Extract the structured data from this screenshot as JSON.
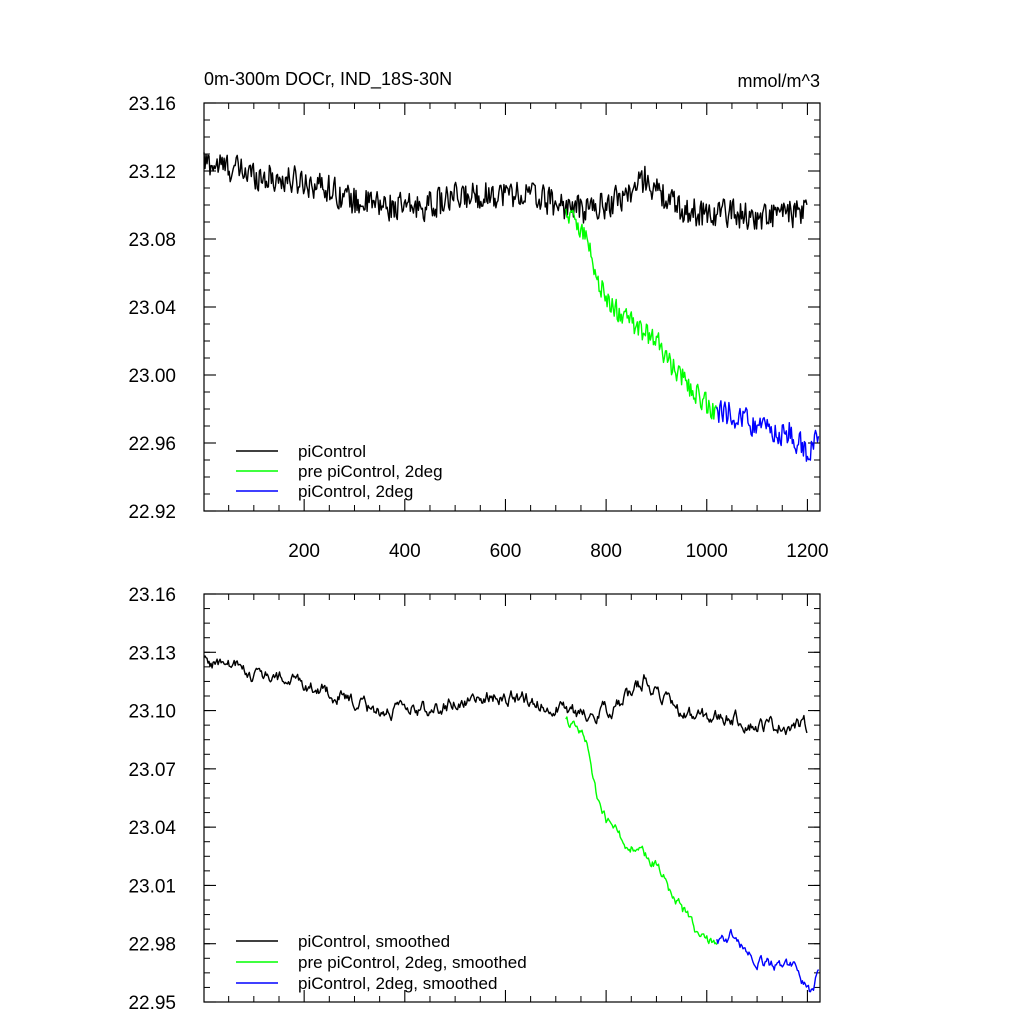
{
  "figure": {
    "title": "0m-300m DOCr, IND_18S-30N",
    "units": "mmol/m^3"
  },
  "chart_data": [
    {
      "type": "line",
      "title": "0m-300m DOCr, IND_18S-30N",
      "units_label": "mmol/m^3",
      "xlabel": "",
      "ylabel": "",
      "xlim": [
        1,
        1225
      ],
      "ylim": [
        22.92,
        23.16
      ],
      "xticks": [
        200,
        400,
        600,
        800,
        1000,
        1200
      ],
      "xtick_labels": [
        "200",
        "400",
        "600",
        "800",
        "1000",
        "1200"
      ],
      "yticks": [
        22.92,
        22.96,
        23.0,
        23.04,
        23.08,
        23.12,
        23.16
      ],
      "ytick_labels": [
        "22.92",
        "22.96",
        "23.00",
        "23.04",
        "23.08",
        "23.12",
        "23.16"
      ],
      "grid": false,
      "legend_position": "bottom-left",
      "series": [
        {
          "name": "piControl",
          "color": "#000000",
          "x": [
            1,
            50,
            100,
            150,
            200,
            250,
            300,
            350,
            400,
            450,
            500,
            550,
            600,
            650,
            700,
            750,
            800,
            850,
            880,
            900,
            950,
            1000,
            1050,
            1100,
            1150,
            1200
          ],
          "values": [
            23.125,
            23.122,
            23.118,
            23.115,
            23.114,
            23.11,
            23.102,
            23.1,
            23.098,
            23.1,
            23.104,
            23.106,
            23.107,
            23.106,
            23.101,
            23.097,
            23.1,
            23.108,
            23.116,
            23.108,
            23.097,
            23.095,
            23.096,
            23.092,
            23.095,
            23.095
          ],
          "noise": 0.009
        },
        {
          "name": "pre piControl, 2deg",
          "color": "#00ff00",
          "x": [
            720,
            740,
            760,
            780,
            800,
            830,
            860,
            900,
            930,
            960,
            990,
            1020
          ],
          "values": [
            23.094,
            23.092,
            23.082,
            23.058,
            23.045,
            23.035,
            23.028,
            23.02,
            23.005,
            22.995,
            22.985,
            22.978
          ],
          "noise": 0.007
        },
        {
          "name": "piControl, 2deg",
          "color": "#0000ff",
          "x": [
            1020,
            1050,
            1080,
            1110,
            1140,
            1170,
            1195,
            1210,
            1222
          ],
          "values": [
            22.978,
            22.977,
            22.974,
            22.968,
            22.966,
            22.965,
            22.955,
            22.955,
            22.967
          ],
          "noise": 0.008
        }
      ]
    },
    {
      "type": "line",
      "title": "",
      "xlabel": "",
      "ylabel": "",
      "xlim": [
        1,
        1225
      ],
      "ylim": [
        22.95,
        23.16
      ],
      "xticks": [
        200,
        400,
        600,
        800,
        1000,
        1200
      ],
      "xtick_labels": [],
      "yticks": [
        22.95,
        22.98,
        23.01,
        23.04,
        23.07,
        23.1,
        23.13,
        23.16
      ],
      "ytick_labels": [
        "22.95",
        "22.98",
        "23.01",
        "23.04",
        "23.07",
        "23.10",
        "23.13",
        "23.16"
      ],
      "grid": false,
      "legend_position": "bottom-left",
      "series": [
        {
          "name": "piControl, smoothed",
          "color": "#000000",
          "x": [
            1,
            50,
            100,
            150,
            200,
            250,
            300,
            350,
            400,
            450,
            500,
            550,
            600,
            650,
            700,
            750,
            800,
            850,
            880,
            900,
            950,
            1000,
            1050,
            1100,
            1150,
            1200
          ],
          "values": [
            23.126,
            23.123,
            23.119,
            23.116,
            23.114,
            23.11,
            23.103,
            23.1,
            23.099,
            23.101,
            23.104,
            23.107,
            23.107,
            23.106,
            23.101,
            23.098,
            23.1,
            23.108,
            23.118,
            23.109,
            23.098,
            23.096,
            23.097,
            23.092,
            23.093,
            23.092
          ],
          "noise": 0.005
        },
        {
          "name": "pre piControl, 2deg, smoothed",
          "color": "#00ff00",
          "x": [
            720,
            740,
            760,
            780,
            800,
            830,
            860,
            900,
            930,
            960,
            990,
            1020
          ],
          "values": [
            23.095,
            23.09,
            23.085,
            23.058,
            23.045,
            23.035,
            23.028,
            23.02,
            23.005,
            22.995,
            22.982,
            22.982
          ],
          "noise": 0.004
        },
        {
          "name": "piControl, 2deg, smoothed",
          "color": "#0000ff",
          "x": [
            1020,
            1050,
            1080,
            1110,
            1140,
            1170,
            1195,
            1210,
            1222
          ],
          "values": [
            22.982,
            22.984,
            22.975,
            22.97,
            22.968,
            22.97,
            22.958,
            22.953,
            22.968
          ],
          "noise": 0.004
        }
      ]
    }
  ]
}
